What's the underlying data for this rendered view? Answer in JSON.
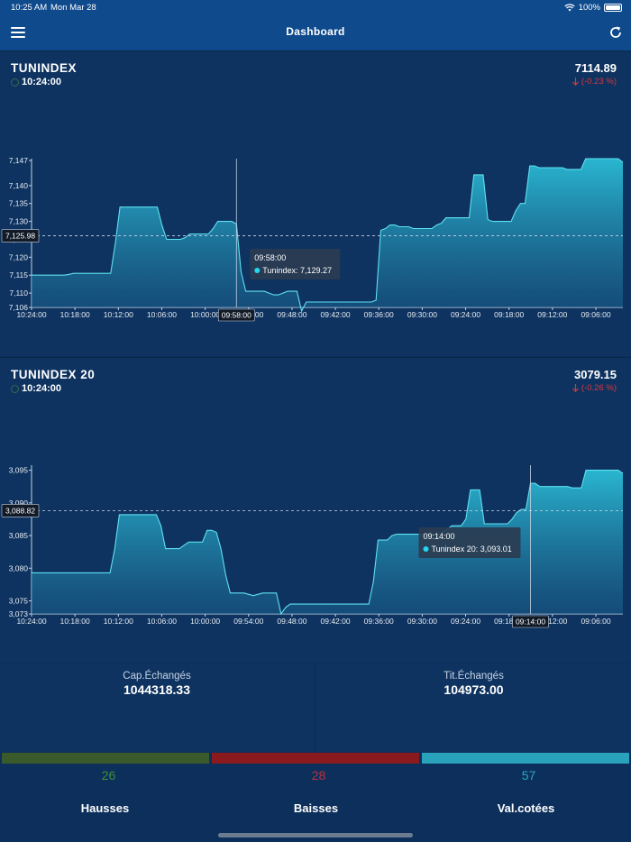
{
  "status_bar": {
    "time": "10:25 AM",
    "date": "Mon Mar 28",
    "battery": "100%"
  },
  "nav": {
    "title": "Dashboard",
    "menu_icon": "hamburger-menu-icon",
    "refresh_icon": "refresh-icon"
  },
  "indices": [
    {
      "name": "TUNINDEX",
      "time": "10:24:00",
      "value": "7114.89",
      "change": "(-0.23 %)",
      "crosshair_price": "7,125.98",
      "crosshair_time": "09:58:00",
      "tooltip": {
        "time": "09:58:00",
        "label": "Tunindex: 7,129.27"
      },
      "chart_data": {
        "type": "area",
        "x_ticks": [
          "10:24:00",
          "10:18:00",
          "10:12:00",
          "10:06:00",
          "10:00:00",
          "09:54:00",
          "09:48:00",
          "09:42:00",
          "09:36:00",
          "09:30:00",
          "09:24:00",
          "09:18:00",
          "09:12:00",
          "09:06:00"
        ],
        "y_ticks": [
          "7,106",
          "7,110",
          "7,115",
          "7,120",
          "7,125",
          "7,130",
          "7,135",
          "7,140",
          "7,147"
        ],
        "ylim": [
          7106,
          7147
        ],
        "highlight_index": 44,
        "series": [
          {
            "values": [
              7115,
              7115,
              7115,
              7115,
              7115,
              7115,
              7115,
              7115,
              7115.2,
              7115.5,
              7115.5,
              7115.5,
              7115.5,
              7115.5,
              7115.5,
              7115.5,
              7115.5,
              7115.5,
              7124,
              7134,
              7134,
              7134,
              7134,
              7134,
              7134,
              7134,
              7134,
              7134,
              7129,
              7125,
              7125,
              7125,
              7125,
              7125.5,
              7126.5,
              7126.5,
              7126.5,
              7126.5,
              7126.5,
              7128,
              7130,
              7130,
              7130,
              7130,
              7129.27,
              7116,
              7110.5,
              7110.5,
              7110.5,
              7110.5,
              7110.5,
              7110,
              7109.5,
              7109.5,
              7110,
              7110.5,
              7110.5,
              7110.5,
              7105,
              7107.5,
              7107.5,
              7107.5,
              7107.5,
              7107.5,
              7107.5,
              7107.5,
              7107.5,
              7107.5,
              7107.5,
              7107.5,
              7107.5,
              7107.5,
              7107.5,
              7107.5,
              7108,
              7127.5,
              7128,
              7129,
              7129,
              7128.5,
              7128.5,
              7128.5,
              7128,
              7128,
              7128,
              7128,
              7128,
              7129,
              7129.5,
              7131,
              7131,
              7131,
              7131,
              7131,
              7131,
              7143,
              7143,
              7143,
              7130.5,
              7130,
              7130,
              7130,
              7130,
              7130,
              7133,
              7135,
              7135,
              7145.5,
              7145.5,
              7145,
              7145,
              7145,
              7145,
              7145,
              7145,
              7144.5,
              7144.5,
              7144.5,
              7144.5,
              7147.5,
              7147.5,
              7147.5,
              7147.5,
              7147.5,
              7147.5,
              7147.5,
              7147.5,
              7146.5
            ]
          }
        ]
      }
    },
    {
      "name": "TUNINDEX 20",
      "time": "10:24:00",
      "value": "3079.15",
      "change": "(-0.26 %)",
      "crosshair_price": "3,088.82",
      "crosshair_time": "09:14:00",
      "tooltip": {
        "time": "09:14:00",
        "label": "Tunindex 20: 3,093.01"
      },
      "chart_data": {
        "type": "area",
        "x_ticks": [
          "10:24:00",
          "10:18:00",
          "10:12:00",
          "10:06:00",
          "10:00:00",
          "09:54:00",
          "09:48:00",
          "09:42:00",
          "09:36:00",
          "09:30:00",
          "09:24:00",
          "09:18:00",
          "09:12:00",
          "09:06:00"
        ],
        "y_ticks": [
          "3,073",
          "3,075",
          "3,080",
          "3,085",
          "3,090",
          "3,095"
        ],
        "ylim": [
          3073,
          3095.5
        ],
        "highlight_index": 108,
        "series": [
          {
            "values": [
              3079.3,
              3079.3,
              3079.3,
              3079.3,
              3079.3,
              3079.3,
              3079.3,
              3079.3,
              3079.3,
              3079.3,
              3079.3,
              3079.3,
              3079.3,
              3079.3,
              3079.3,
              3079.3,
              3079.3,
              3079.3,
              3083,
              3088.2,
              3088.2,
              3088.2,
              3088.2,
              3088.2,
              3088.2,
              3088.2,
              3088.2,
              3088.2,
              3086.5,
              3083,
              3083,
              3083,
              3083,
              3083.5,
              3084,
              3084,
              3084,
              3084,
              3085.8,
              3085.8,
              3085.5,
              3083,
              3079,
              3076.2,
              3076.2,
              3076.2,
              3076.2,
              3076,
              3075.8,
              3076,
              3076.2,
              3076.2,
              3076.2,
              3076.2,
              3073,
              3074,
              3074.5,
              3074.5,
              3074.5,
              3074.5,
              3074.5,
              3074.5,
              3074.5,
              3074.5,
              3074.5,
              3074.5,
              3074.5,
              3074.5,
              3074.5,
              3074.5,
              3074.5,
              3074.5,
              3074.5,
              3074.5,
              3078,
              3084.3,
              3084.3,
              3084.3,
              3085,
              3085.2,
              3085.2,
              3085.2,
              3085.2,
              3085.2,
              3085.2,
              3085.2,
              3085.2,
              3085.2,
              3085.2,
              3085.5,
              3086,
              3086.5,
              3086.5,
              3086.5,
              3087.5,
              3092,
              3092,
              3092,
              3086.8,
              3086.8,
              3086.8,
              3086.8,
              3086.8,
              3086.8,
              3087.5,
              3088.5,
              3089,
              3089,
              3093.01,
              3093.01,
              3092.5,
              3092.5,
              3092.5,
              3092.5,
              3092.5,
              3092.5,
              3092.5,
              3092.3,
              3092.3,
              3092.3,
              3095,
              3095,
              3095,
              3095,
              3095,
              3095,
              3095,
              3095,
              3094.5
            ]
          }
        ]
      }
    }
  ],
  "stats": {
    "cap_label": "Cap.Échangés",
    "cap_value": "1044318.33",
    "tit_label": "Tit.Échangés",
    "tit_value": "104973.00"
  },
  "breadth": {
    "colors": {
      "up": "#3b5a2c",
      "down": "#8b1a1f",
      "listed": "#28a3bb",
      "up_text": "#3f8f35",
      "down_text": "#c0303a",
      "listed_text": "#2aa6be"
    },
    "up_count": "26",
    "up_label": "Hausses",
    "down_count": "28",
    "down_label": "Baisses",
    "listed_count": "57",
    "listed_label": "Val.cotées"
  }
}
